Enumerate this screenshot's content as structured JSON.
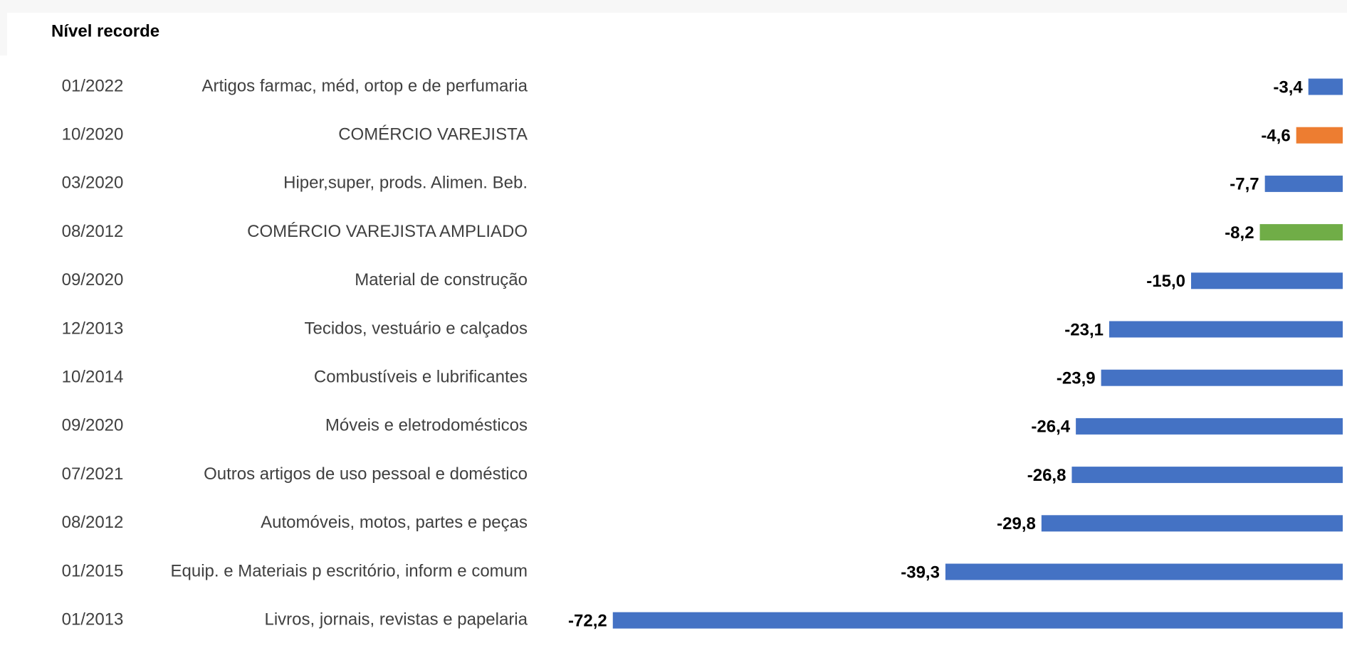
{
  "chart_data": {
    "type": "bar",
    "orientation": "horizontal",
    "title": "Nível recorde",
    "dates": [
      "01/2022",
      "10/2020",
      "03/2020",
      "08/2012",
      "09/2020",
      "12/2013",
      "10/2014",
      "09/2020",
      "07/2021",
      "08/2012",
      "01/2015",
      "01/2013"
    ],
    "categories": [
      "Artigos farmac, méd, ortop e de perfumaria",
      "COMÉRCIO VAREJISTA",
      "Hiper,super, prods. Alimen. Beb.",
      "COMÉRCIO VAREJISTA AMPLIADO",
      "Material de construção",
      "Tecidos, vestuário e calçados",
      "Combustíveis e lubrificantes",
      "Móveis e eletrodomésticos",
      "Outros artigos de uso pessoal e doméstico",
      "Automóveis, motos, partes e peças",
      "Equip. e Materiais p escritório, inform e comum",
      "Livros, jornais, revistas e papelaria"
    ],
    "values": [
      -3.4,
      -4.6,
      -7.7,
      -8.2,
      -15.0,
      -23.1,
      -23.9,
      -26.4,
      -26.8,
      -29.8,
      -39.3,
      -72.2
    ],
    "value_labels": [
      "-3,4",
      "-4,6",
      "-7,7",
      "-8,2",
      "-15,0",
      "-23,1",
      "-23,9",
      "-26,4",
      "-26,8",
      "-29,8",
      "-39,3",
      "-72,2"
    ],
    "colors": [
      "#4472c4",
      "#ed7d31",
      "#4472c4",
      "#70ad47",
      "#4472c4",
      "#4472c4",
      "#4472c4",
      "#4472c4",
      "#4472c4",
      "#4472c4",
      "#4472c4",
      "#4472c4"
    ],
    "xlim": [
      -80,
      0
    ]
  }
}
